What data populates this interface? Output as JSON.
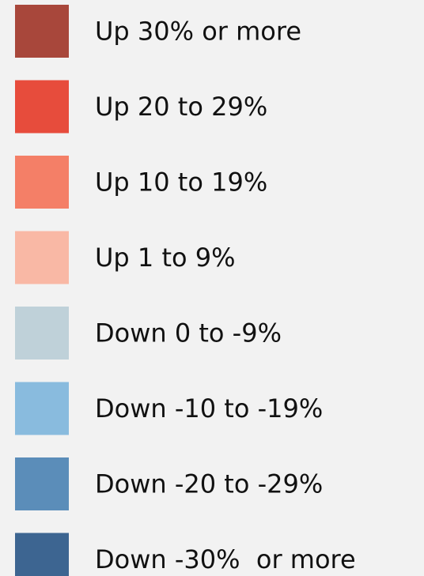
{
  "legend": {
    "items": [
      {
        "label": "Up 30% or more",
        "color": "#a8473b"
      },
      {
        "label": "Up 20 to 29%",
        "color": "#e74c3c"
      },
      {
        "label": "Up 10 to 19%",
        "color": "#f47f67"
      },
      {
        "label": "Up 1 to 9%",
        "color": "#f9b8a5"
      },
      {
        "label": "Down 0 to -9%",
        "color": "#bfd1d9"
      },
      {
        "label": "Down -10 to -19%",
        "color": "#89bbde"
      },
      {
        "label": "Down -20 to -29%",
        "color": "#5b8db9"
      },
      {
        "label": "Down -30%  or more",
        "color": "#3d6591"
      }
    ]
  }
}
